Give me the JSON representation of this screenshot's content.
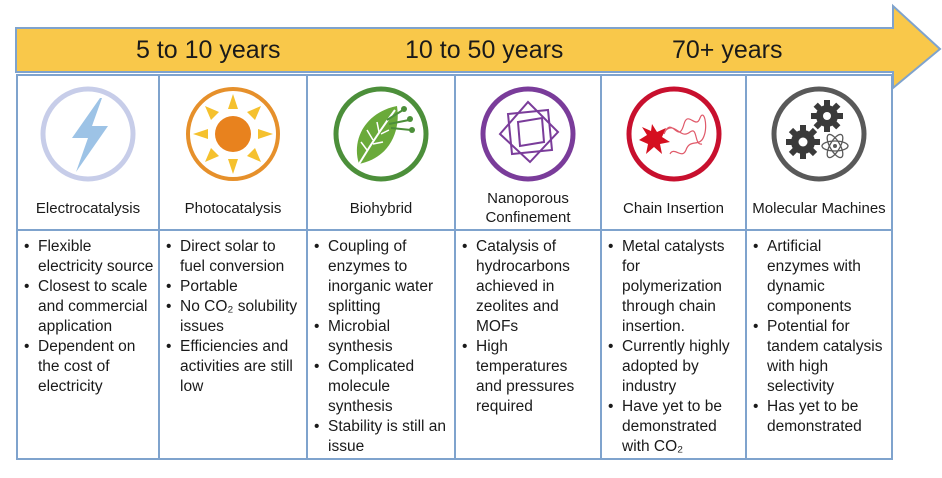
{
  "timeline": {
    "labels": [
      "5 to 10 years",
      "10 to 50 years",
      "70+ years"
    ],
    "arrow_color": "#f9c84a",
    "arrow_edge_color": "#7fa3cd"
  },
  "columns": [
    {
      "name": "Electrocatalysis",
      "icon": "lightning-bolt-icon",
      "bullets": [
        "Flexible electricity source",
        "Closest to scale and commercial application",
        "Dependent on the cost of electricity"
      ]
    },
    {
      "name": "Photocatalysis",
      "icon": "sun-icon",
      "bullets": [
        "Direct solar to fuel conversion",
        "Portable",
        "No CO₂ solubility issues",
        "Efficiencies and activities  are still low"
      ]
    },
    {
      "name": "Biohybrid",
      "icon": "leaf-icon",
      "bullets": [
        "Coupling of enzymes to inorganic water splitting",
        "Microbial synthesis",
        "Complicated molecule synthesis",
        "Stability is still an issue"
      ]
    },
    {
      "name": "Nanoporous Confinement",
      "icon": "nested-squares-icon",
      "bullets": [
        "Catalysis of hydrocarbons achieved in zeolites and MOFs",
        "High temperatures and pressures required"
      ]
    },
    {
      "name": "Chain Insertion",
      "icon": "polymer-chain-icon",
      "bullets": [
        "Metal catalysts for polymerization through chain insertion.",
        "Currently highly adopted by industry",
        "Have yet to be demonstrated with CO₂"
      ]
    },
    {
      "name": "Molecular Machines",
      "icon": "gears-atom-icon",
      "bullets": [
        "Artificial enzymes with dynamic components",
        "Potential for tandem catalysis with high selectivity",
        "Has yet to be demonstrated"
      ]
    }
  ]
}
